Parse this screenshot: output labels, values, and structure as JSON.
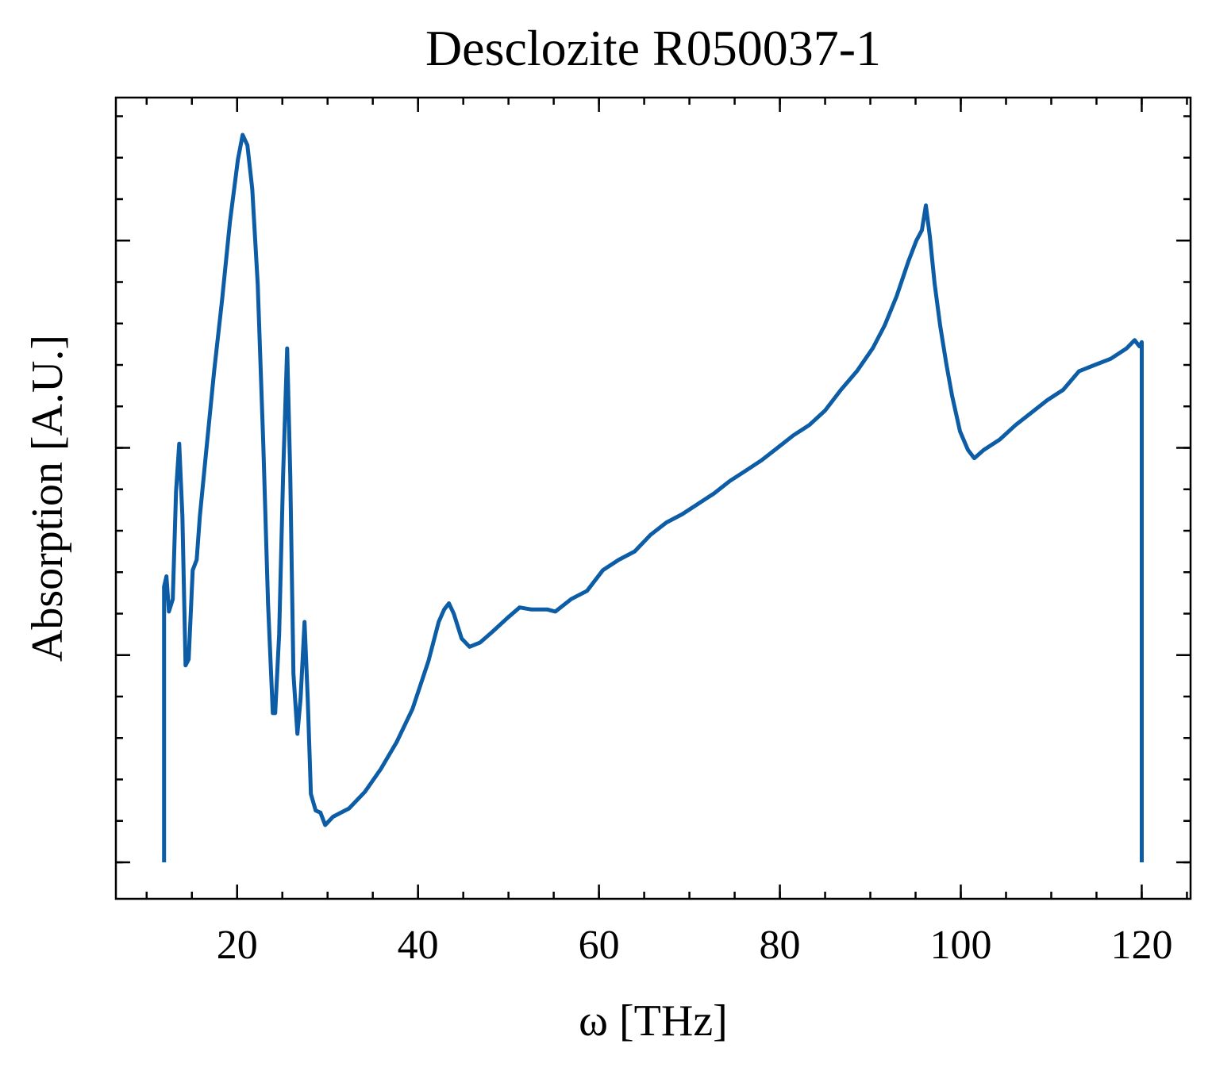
{
  "chart_data": {
    "type": "line",
    "title": "Desclozite R050037-1",
    "x_label": "ω [THz]",
    "y_label": "Absorption [A.U.]",
    "color": "#0c5da5",
    "x": [
      11.93,
      11.93,
      12.19,
      12.46,
      12.89,
      13.25,
      13.6,
      13.95,
      14.3,
      14.65,
      15.09,
      15.53,
      15.88,
      16.58,
      17.46,
      18.33,
      19.21,
      20.09,
      20.61,
      21.14,
      21.67,
      22.28,
      22.89,
      23.42,
      23.95,
      24.21,
      24.65,
      25.09,
      25.53,
      25.88,
      26.23,
      26.67,
      27.02,
      27.46,
      27.81,
      28.16,
      28.68,
      29.21,
      29.74,
      30.61,
      32.37,
      34.12,
      35.88,
      37.63,
      39.39,
      41.14,
      42.28,
      42.89,
      43.42,
      43.95,
      44.82,
      45.7,
      46.84,
      48.16,
      49.91,
      51.23,
      52.54,
      54.3,
      55.18,
      56.93,
      58.68,
      60.44,
      62.19,
      63.95,
      65.7,
      67.46,
      69.21,
      70.96,
      72.72,
      74.47,
      76.23,
      77.98,
      79.74,
      81.49,
      83.25,
      85.0,
      86.75,
      88.51,
      90.26,
      91.58,
      92.89,
      94.21,
      95.09,
      95.7,
      96.14,
      96.58,
      97.11,
      97.72,
      98.42,
      99.04,
      99.91,
      100.79,
      101.49,
      102.54,
      104.3,
      106.05,
      107.81,
      109.56,
      111.32,
      113.07,
      114.82,
      116.58,
      118.33,
      119.21,
      119.74,
      120.0,
      120.0
    ],
    "values": [
      0,
      1.33,
      1.38,
      1.21,
      1.27,
      1.79,
      2.02,
      1.67,
      0.95,
      0.98,
      1.41,
      1.46,
      1.67,
      1.98,
      2.37,
      2.71,
      3.09,
      3.39,
      3.51,
      3.46,
      3.25,
      2.79,
      2.02,
      1.25,
      0.72,
      0.72,
      1.1,
      1.87,
      2.48,
      1.87,
      0.91,
      0.62,
      0.79,
      1.16,
      0.79,
      0.33,
      0.25,
      0.24,
      0.18,
      0.22,
      0.26,
      0.34,
      0.45,
      0.58,
      0.74,
      0.97,
      1.16,
      1.22,
      1.25,
      1.2,
      1.08,
      1.04,
      1.06,
      1.11,
      1.18,
      1.23,
      1.22,
      1.22,
      1.21,
      1.27,
      1.31,
      1.41,
      1.46,
      1.5,
      1.58,
      1.64,
      1.68,
      1.73,
      1.78,
      1.84,
      1.89,
      1.94,
      2.0,
      2.06,
      2.11,
      2.18,
      2.28,
      2.37,
      2.48,
      2.59,
      2.73,
      2.9,
      3.0,
      3.05,
      3.17,
      3.02,
      2.79,
      2.59,
      2.4,
      2.25,
      2.08,
      1.99,
      1.95,
      1.99,
      2.04,
      2.11,
      2.17,
      2.23,
      2.28,
      2.37,
      2.4,
      2.43,
      2.48,
      2.52,
      2.49,
      2.51,
      0
    ],
    "xlim": [
      6.6,
      125.4
    ],
    "ylim": [
      -0.176,
      3.69
    ],
    "xticks": [
      20,
      40,
      60,
      80,
      100,
      120
    ],
    "yticks": [
      0,
      1,
      2,
      3
    ]
  }
}
